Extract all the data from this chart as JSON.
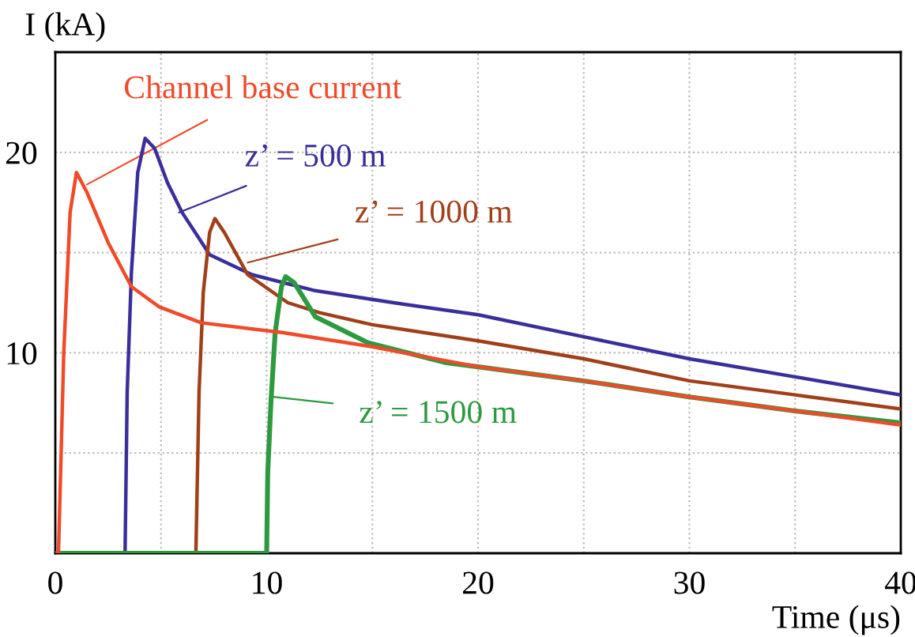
{
  "chart_data": {
    "type": "line",
    "xlabel": "Time (μs)",
    "ylabel": "I (kA)",
    "xlim": [
      0,
      40
    ],
    "ylim": [
      0,
      25
    ],
    "xticks": [
      0,
      {
        "value": 5,
        "label": null
      },
      10,
      {
        "value": 15,
        "label": null
      },
      20,
      {
        "value": 25,
        "label": null
      },
      30,
      {
        "value": 35,
        "label": null
      },
      40
    ],
    "yticks": [
      {
        "value": 5,
        "label": null
      },
      10,
      {
        "value": 15,
        "label": null
      },
      20
    ],
    "grid": true,
    "legend": false,
    "line_style": "solid",
    "marker": "none",
    "series": [
      {
        "color": "#f04a2a",
        "x": [
          0,
          0.15,
          0.4,
          0.7,
          1.0,
          1.5,
          2.5,
          3.6,
          4.9,
          6.9,
          10.8,
          15,
          20,
          25,
          30,
          35,
          40
        ],
        "values": [
          0,
          0,
          10,
          17,
          19.0,
          18,
          15.5,
          13.3,
          12.3,
          11.5,
          11.0,
          10.3,
          9.3,
          8.6,
          7.8,
          7.1,
          6.4
        ]
      },
      {
        "color": "#3a2f9a",
        "x": [
          0,
          3.3,
          3.4,
          3.6,
          3.9,
          4.25,
          4.7,
          5.3,
          6.0,
          7.3,
          9.3,
          12.3,
          16,
          20,
          25,
          30,
          35,
          40
        ],
        "values": [
          0,
          0,
          8,
          14,
          19,
          20.7,
          20.2,
          18.5,
          17.0,
          14.9,
          13.9,
          13.1,
          12.5,
          11.9,
          10.8,
          9.7,
          8.8,
          7.9
        ]
      },
      {
        "color": "#a0401a",
        "x": [
          0,
          6.65,
          6.8,
          7.0,
          7.3,
          7.55,
          8,
          9.1,
          11,
          12.5,
          15,
          20,
          25,
          30,
          35,
          40
        ],
        "values": [
          0,
          0,
          8,
          13,
          16,
          16.7,
          16,
          13.9,
          12.5,
          12.0,
          11.4,
          10.6,
          9.7,
          8.6,
          7.9,
          7.2
        ]
      },
      {
        "color": "#2e9a40",
        "x": [
          0,
          10.0,
          10.05,
          10.2,
          10.4,
          10.7,
          10.9,
          11.3,
          12.3,
          14.8,
          18.5,
          20,
          25,
          30,
          35,
          40
        ],
        "values": [
          0,
          0,
          4,
          7.5,
          11,
          13.3,
          13.8,
          13.5,
          11.8,
          10.5,
          9.5,
          9.3,
          8.6,
          7.8,
          7.1,
          6.5
        ]
      }
    ],
    "annotations": [
      {
        "text": "Channel base current",
        "x": 1.5,
        "y": 18.4
      },
      {
        "text": "z’ = 500 m",
        "x": 5.85,
        "y": 17.0
      },
      {
        "text": "z’ = 1000 m",
        "x": 9.1,
        "y": 14.5
      },
      {
        "text": "z’ = 1500 m",
        "x": 10.3,
        "y": 7.8
      }
    ]
  }
}
